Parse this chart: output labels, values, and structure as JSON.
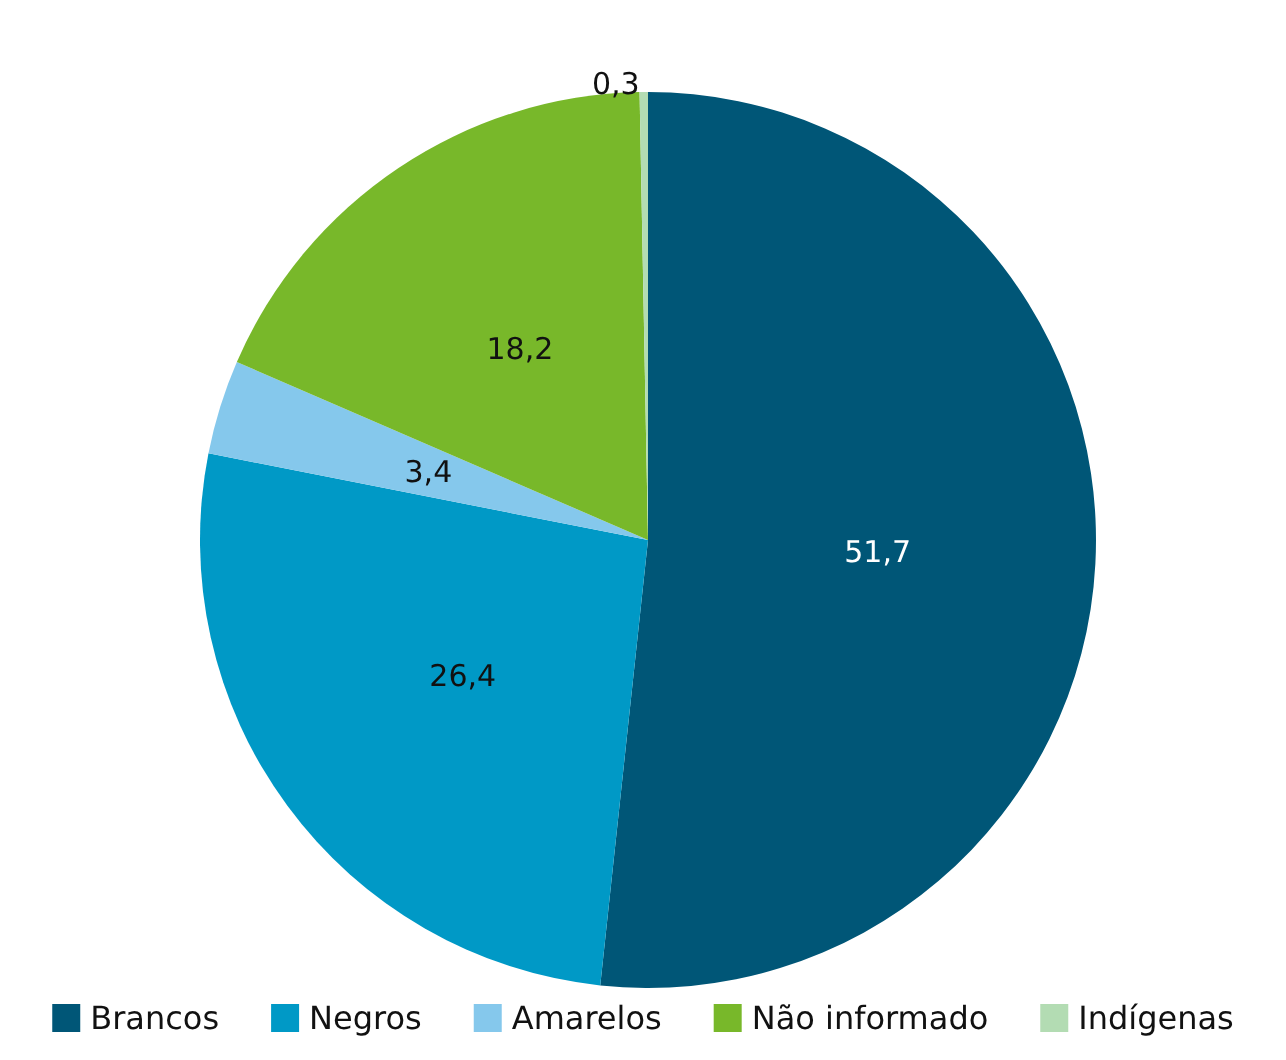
{
  "chart_data": {
    "type": "pie",
    "categories": [
      "Brancos",
      "Negros",
      "Amarelos",
      "Não informado",
      "Indígenas"
    ],
    "values": [
      51.7,
      26.4,
      3.4,
      18.2,
      0.3
    ],
    "colors": [
      "#005677",
      "#0099c6",
      "#85c8ec",
      "#78b82a",
      "#b3dcb3"
    ],
    "value_labels": [
      "51,7",
      "26,4",
      "3,4",
      "18,2",
      "0,3"
    ],
    "legend": "bottom"
  }
}
